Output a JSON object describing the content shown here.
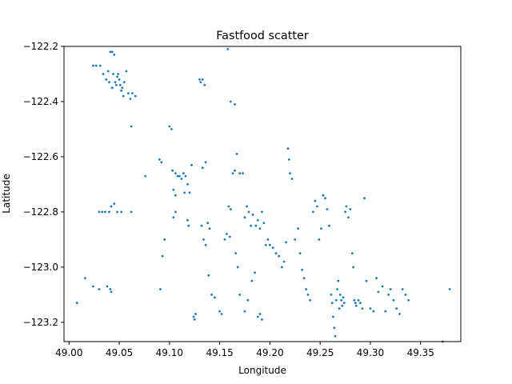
{
  "chart_data": {
    "type": "scatter",
    "title": "Fastfood scatter",
    "xlabel": "Longitude",
    "ylabel": "Latitude",
    "xlim": [
      48.995,
      49.39
    ],
    "ylim": [
      -123.27,
      -122.2
    ],
    "y_inverted": true,
    "grid": false,
    "color": "#1f77b4",
    "xticks": [
      49.0,
      49.05,
      49.1,
      49.15,
      49.2,
      49.25,
      49.3,
      49.35
    ],
    "xtick_labels": [
      "49.00",
      "49.05",
      "49.10",
      "49.15",
      "49.20",
      "49.25",
      "49.30",
      "49.35"
    ],
    "yticks": [
      -122.2,
      -122.4,
      -122.6,
      -122.8,
      -123.0,
      -123.2
    ],
    "ytick_labels": [
      "−122.2",
      "−122.4",
      "−122.6",
      "−122.8",
      "−123.0",
      "−123.2"
    ],
    "points": [
      [
        49.008,
        -123.13
      ],
      [
        49.016,
        -123.04
      ],
      [
        49.024,
        -123.07
      ],
      [
        49.03,
        -123.08
      ],
      [
        49.038,
        -123.07
      ],
      [
        49.041,
        -123.08
      ],
      [
        49.042,
        -123.09
      ],
      [
        49.024,
        -122.27
      ],
      [
        49.027,
        -122.27
      ],
      [
        49.031,
        -122.27
      ],
      [
        49.034,
        -122.3
      ],
      [
        49.037,
        -122.32
      ],
      [
        49.039,
        -122.29
      ],
      [
        49.041,
        -122.22
      ],
      [
        49.043,
        -122.22
      ],
      [
        49.045,
        -122.23
      ],
      [
        49.044,
        -122.3
      ],
      [
        49.046,
        -122.33
      ],
      [
        49.048,
        -122.31
      ],
      [
        49.049,
        -122.3
      ],
      [
        49.05,
        -122.32
      ],
      [
        49.051,
        -122.34
      ],
      [
        49.052,
        -122.36
      ],
      [
        49.054,
        -122.38
      ],
      [
        49.055,
        -122.33
      ],
      [
        49.057,
        -122.29
      ],
      [
        49.059,
        -122.37
      ],
      [
        49.061,
        -122.39
      ],
      [
        49.063,
        -122.37
      ],
      [
        49.066,
        -122.38
      ],
      [
        49.062,
        -122.49
      ],
      [
        49.047,
        -122.34
      ],
      [
        49.043,
        -122.35
      ],
      [
        49.04,
        -122.33
      ],
      [
        49.053,
        -122.35
      ],
      [
        49.03,
        -122.8
      ],
      [
        49.033,
        -122.8
      ],
      [
        49.036,
        -122.8
      ],
      [
        49.04,
        -122.8
      ],
      [
        49.042,
        -122.78
      ],
      [
        49.045,
        -122.77
      ],
      [
        49.048,
        -122.8
      ],
      [
        49.052,
        -122.8
      ],
      [
        49.062,
        -122.8
      ],
      [
        49.076,
        -122.67
      ],
      [
        49.09,
        -122.61
      ],
      [
        49.092,
        -122.62
      ],
      [
        49.091,
        -123.08
      ],
      [
        49.095,
        -122.9
      ],
      [
        49.093,
        -122.96
      ],
      [
        49.1,
        -122.49
      ],
      [
        49.102,
        -122.5
      ],
      [
        49.103,
        -122.65
      ],
      [
        49.106,
        -122.66
      ],
      [
        49.104,
        -122.72
      ],
      [
        49.106,
        -122.74
      ],
      [
        49.108,
        -122.67
      ],
      [
        49.11,
        -122.67
      ],
      [
        49.112,
        -122.68
      ],
      [
        49.114,
        -122.66
      ],
      [
        49.116,
        -122.67
      ],
      [
        49.118,
        -122.7
      ],
      [
        49.12,
        -122.73
      ],
      [
        49.115,
        -122.73
      ],
      [
        49.106,
        -122.8
      ],
      [
        49.104,
        -122.82
      ],
      [
        49.118,
        -122.83
      ],
      [
        49.119,
        -122.85
      ],
      [
        49.122,
        -122.63
      ],
      [
        49.124,
        -123.18
      ],
      [
        49.125,
        -123.19
      ],
      [
        49.126,
        -123.17
      ],
      [
        49.13,
        -122.32
      ],
      [
        49.131,
        -122.33
      ],
      [
        49.133,
        -122.32
      ],
      [
        49.135,
        -122.34
      ],
      [
        49.132,
        -122.85
      ],
      [
        49.134,
        -122.9
      ],
      [
        49.136,
        -122.92
      ],
      [
        49.138,
        -122.84
      ],
      [
        49.14,
        -122.86
      ],
      [
        49.133,
        -122.64
      ],
      [
        49.136,
        -122.62
      ],
      [
        49.139,
        -123.03
      ],
      [
        49.142,
        -123.1
      ],
      [
        49.145,
        -123.11
      ],
      [
        49.15,
        -123.16
      ],
      [
        49.152,
        -123.17
      ],
      [
        49.155,
        -122.9
      ],
      [
        49.157,
        -122.88
      ],
      [
        49.159,
        -122.78
      ],
      [
        49.161,
        -122.79
      ],
      [
        49.163,
        -122.66
      ],
      [
        49.165,
        -122.65
      ],
      [
        49.167,
        -122.59
      ],
      [
        49.17,
        -122.66
      ],
      [
        49.173,
        -122.66
      ],
      [
        49.175,
        -122.82
      ],
      [
        49.177,
        -122.78
      ],
      [
        49.179,
        -122.8
      ],
      [
        49.181,
        -122.85
      ],
      [
        49.183,
        -122.81
      ],
      [
        49.186,
        -122.85
      ],
      [
        49.188,
        -122.83
      ],
      [
        49.19,
        -122.86
      ],
      [
        49.192,
        -122.8
      ],
      [
        49.194,
        -122.84
      ],
      [
        49.158,
        -122.21
      ],
      [
        49.161,
        -122.4
      ],
      [
        49.165,
        -122.41
      ],
      [
        49.16,
        -122.89
      ],
      [
        49.166,
        -122.95
      ],
      [
        49.168,
        -123.0
      ],
      [
        49.17,
        -123.1
      ],
      [
        49.175,
        -123.16
      ],
      [
        49.178,
        -123.12
      ],
      [
        49.182,
        -123.05
      ],
      [
        49.185,
        -123.02
      ],
      [
        49.188,
        -123.18
      ],
      [
        49.19,
        -123.17
      ],
      [
        49.192,
        -123.19
      ],
      [
        49.196,
        -122.92
      ],
      [
        49.198,
        -122.9
      ],
      [
        49.2,
        -122.92
      ],
      [
        49.203,
        -122.93
      ],
      [
        49.206,
        -122.95
      ],
      [
        49.209,
        -122.96
      ],
      [
        49.212,
        -123.0
      ],
      [
        49.214,
        -122.98
      ],
      [
        49.216,
        -122.91
      ],
      [
        49.218,
        -122.57
      ],
      [
        49.219,
        -122.61
      ],
      [
        49.22,
        -122.66
      ],
      [
        49.222,
        -122.68
      ],
      [
        49.225,
        -122.9
      ],
      [
        49.228,
        -122.86
      ],
      [
        49.23,
        -122.95
      ],
      [
        49.232,
        -123.01
      ],
      [
        49.234,
        -123.04
      ],
      [
        49.236,
        -123.08
      ],
      [
        49.238,
        -123.1
      ],
      [
        49.24,
        -123.12
      ],
      [
        49.243,
        -122.8
      ],
      [
        49.245,
        -122.76
      ],
      [
        49.247,
        -122.78
      ],
      [
        49.249,
        -122.9
      ],
      [
        49.251,
        -122.86
      ],
      [
        49.253,
        -122.74
      ],
      [
        49.255,
        -122.75
      ],
      [
        49.257,
        -122.79
      ],
      [
        49.259,
        -122.85
      ],
      [
        49.261,
        -123.1
      ],
      [
        49.262,
        -123.13
      ],
      [
        49.263,
        -123.18
      ],
      [
        49.264,
        -123.22
      ],
      [
        49.265,
        -123.25
      ],
      [
        49.266,
        -123.12
      ],
      [
        49.267,
        -123.08
      ],
      [
        49.268,
        -123.05
      ],
      [
        49.269,
        -123.15
      ],
      [
        49.27,
        -123.1
      ],
      [
        49.271,
        -123.12
      ],
      [
        49.272,
        -123.14
      ],
      [
        49.273,
        -123.11
      ],
      [
        49.274,
        -123.13
      ],
      [
        49.275,
        -122.8
      ],
      [
        49.276,
        -122.78
      ],
      [
        49.278,
        -122.82
      ],
      [
        49.28,
        -122.79
      ],
      [
        49.282,
        -122.95
      ],
      [
        49.283,
        -123.0
      ],
      [
        49.284,
        -123.12
      ],
      [
        49.285,
        -123.13
      ],
      [
        49.286,
        -123.14
      ],
      [
        49.288,
        -123.12
      ],
      [
        49.29,
        -123.13
      ],
      [
        49.292,
        -123.15
      ],
      [
        49.294,
        -122.75
      ],
      [
        49.296,
        -123.05
      ],
      [
        49.3,
        -123.15
      ],
      [
        49.303,
        -123.16
      ],
      [
        49.306,
        -123.04
      ],
      [
        49.308,
        -123.09
      ],
      [
        49.312,
        -123.07
      ],
      [
        49.315,
        -123.16
      ],
      [
        49.318,
        -123.1
      ],
      [
        49.32,
        -123.08
      ],
      [
        49.323,
        -123.12
      ],
      [
        49.326,
        -123.15
      ],
      [
        49.329,
        -123.17
      ],
      [
        49.332,
        -123.08
      ],
      [
        49.335,
        -123.1
      ],
      [
        49.338,
        -123.12
      ],
      [
        49.372,
        -123.27
      ],
      [
        49.379,
        -123.08
      ]
    ]
  }
}
